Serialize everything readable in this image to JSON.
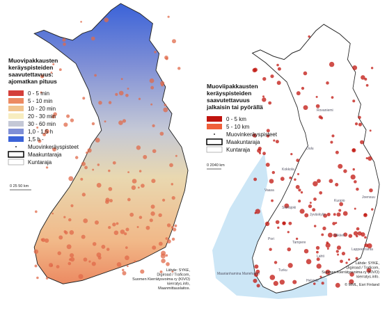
{
  "left_map": {
    "legend_title": [
      "Muovipakkausten",
      "keräyspisteiden",
      "saavutettavuus:",
      "ajomatkan pituus"
    ],
    "items": [
      {
        "label": "0 - 5 min",
        "color": "#d43f3a"
      },
      {
        "label": "5 - 10 min",
        "color": "#ec8a62"
      },
      {
        "label": "10 - 20 min",
        "color": "#f1c48e"
      },
      {
        "label": "20 - 30 min",
        "color": "#f7edc0"
      },
      {
        "label": "30 - 60 min",
        "color": "#c4c8d6"
      },
      {
        "label": "1,0 - 1,5 h",
        "color": "#7f8fd6"
      },
      {
        "label": "1,5 h -",
        "color": "#3b63d8"
      }
    ],
    "point_label": "Muovinkeräyspisteet",
    "province_label": "Maakuntaraja",
    "municipality_label": "Kuntaraja",
    "scale": "0  25 50 km",
    "source": [
      "Lähde: SYKE,",
      "Digiroad / Traficom,",
      "Suomen Kierrätysvoima ry (KIVO)",
      "kierratys.info,",
      "Maanmittauslaitos."
    ]
  },
  "right_map": {
    "legend_title": [
      "Muoviipakkausten",
      "keräyspisteiden",
      "saavutettavuus",
      "jalkaisin tai pyörällä"
    ],
    "items": [
      {
        "label": "0 - 5 km",
        "color": "#c0140e"
      },
      {
        "label": "5 - 10 km",
        "color": "#f0603a"
      }
    ],
    "point_label": "Muovinkeräyspisteet",
    "province_label": "Maakuntaraja",
    "municipality_label": "Kuntaraja",
    "scale": "0 2040 km",
    "source": [
      "Lähde: SYKE,",
      "Digiroad / Traficom,",
      "Suomen Kierrätysvoima ry (KIVO)",
      "kierratys.info."
    ],
    "copyright": "© MML, Esri Finland",
    "place_labels": [
      "Rovaniemi",
      "Oulu",
      "Kokkola",
      "Vaasa",
      "Kuopio",
      "Joensuu",
      "Jyväskylä",
      "Seinäjoki",
      "Pori",
      "Tampere",
      "Mikkeli",
      "Lahti",
      "Lappeenranta",
      "Turku",
      "Helsinki",
      "Maarianhamina Mariehamn"
    ]
  }
}
